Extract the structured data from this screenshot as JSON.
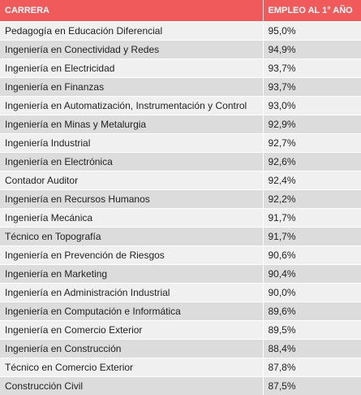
{
  "table": {
    "headers": [
      "CARRERA",
      "EMPLEO AL 1° AÑO"
    ],
    "rows": [
      [
        "Pedagogía en Educación Diferencial",
        "95,0%"
      ],
      [
        "Ingeniería en Conectividad y Redes",
        "94,9%"
      ],
      [
        "Ingeniería en Electricidad",
        "93,7%"
      ],
      [
        "Ingeniería en Finanzas",
        "93,7%"
      ],
      [
        "Ingeniería en Automatización, Instrumentación y Control",
        "93,0%"
      ],
      [
        "Ingeniería en Minas y Metalurgia",
        "92,9%"
      ],
      [
        "Ingeniería Industrial",
        "92,7%"
      ],
      [
        "Ingeniería en Electrónica",
        "92,6%"
      ],
      [
        "Contador Auditor",
        "92,4%"
      ],
      [
        "Ingeniería en Recursos Humanos",
        "92,2%"
      ],
      [
        "Ingeniería Mecánica",
        "91,7%"
      ],
      [
        "Técnico en Topografía",
        "91,7%"
      ],
      [
        "Ingeniería en Prevención de Riesgos",
        "90,6%"
      ],
      [
        "Ingeniería en Marketing",
        "90,4%"
      ],
      [
        "Ingeniería en Administración Industrial",
        "90,0%"
      ],
      [
        "Ingeniería en Computación e Informática",
        "89,6%"
      ],
      [
        "Ingeniería en Comercio Exterior",
        "89,5%"
      ],
      [
        "Ingeniería en Construcción",
        "88,4%"
      ],
      [
        "Técnico en Comercio Exterior",
        "87,8%"
      ],
      [
        "Construcción Civil",
        "87,5%"
      ]
    ]
  },
  "colors": {
    "header_background": "#f15a5a",
    "header_text": "#ffffff",
    "row_light": "#f0f0f0",
    "row_dark": "#dcdcdc"
  }
}
